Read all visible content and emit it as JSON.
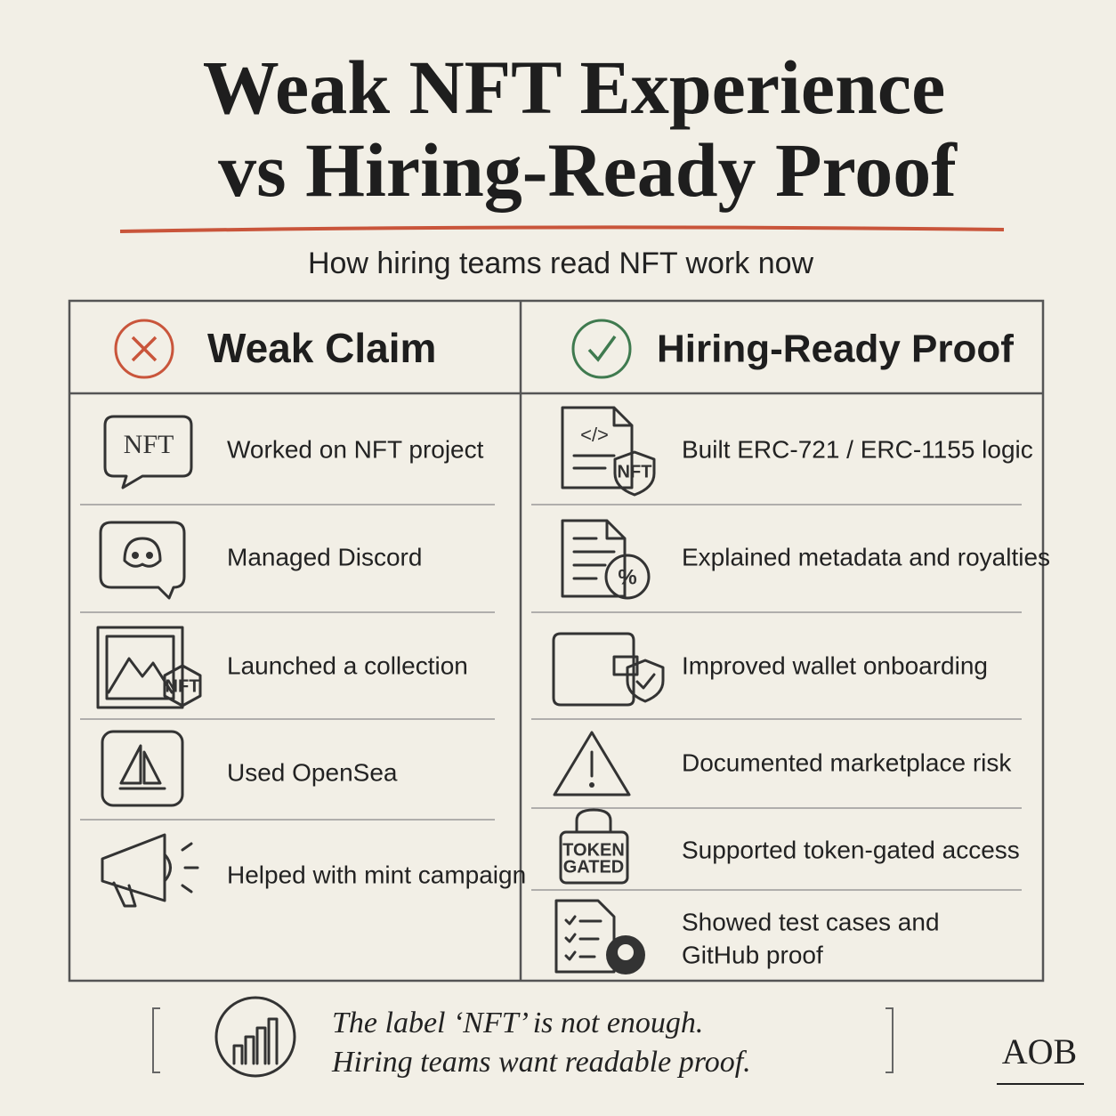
{
  "header": {
    "title_lines": [
      "Weak NFT Experience",
      "vs Hiring-Ready Proof"
    ],
    "subtitle": "How hiring teams read NFT work now"
  },
  "columns": [
    {
      "heading": "Weak Claim",
      "items": [
        {
          "icon_label": "NFT",
          "text": [
            "Worked on NFT project"
          ]
        },
        {
          "text": [
            "Managed Discord"
          ]
        },
        {
          "icon_label": "NFT",
          "text": [
            "Launched a collection"
          ]
        },
        {
          "text": [
            "Used OpenSea"
          ]
        },
        {
          "text": [
            "Helped with mint campaign"
          ]
        }
      ]
    },
    {
      "heading": "Hiring-Ready Proof",
      "items": [
        {
          "icon_label": "NFT",
          "text": [
            "Built ERC-721 / ERC-1155 logic"
          ]
        },
        {
          "text": [
            "Explained metadata and royalties"
          ]
        },
        {
          "text": [
            "Improved wallet onboarding"
          ]
        },
        {
          "text": [
            "Documented marketplace risk"
          ]
        },
        {
          "icon_label": [
            "TOKEN",
            "GATED"
          ],
          "text": [
            "Supported token-gated access"
          ]
        },
        {
          "text": [
            "Showed test cases and",
            "GitHub proof"
          ]
        }
      ]
    }
  ],
  "footer": {
    "quote_lines": [
      "The label ‘NFT’ is not enough.",
      "Hiring teams want readable proof."
    ],
    "brand": "AOB"
  }
}
